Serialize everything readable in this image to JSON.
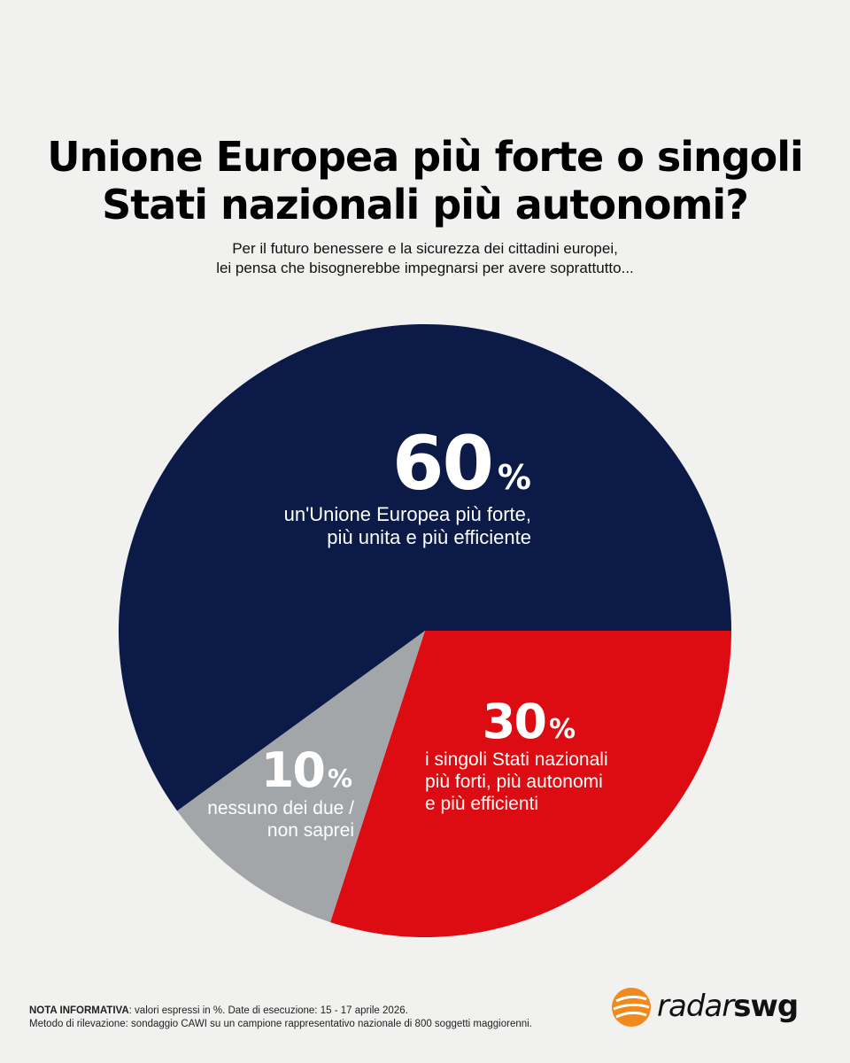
{
  "header": {
    "title_line1": "Unione Europea più forte o singoli",
    "title_line2": "Stati nazionali più autonomi?",
    "subtitle_line1": "Per il futuro benessere e la sicurezza dei cittadini europei,",
    "subtitle_line2": "lei pensa che bisognerebbe impegnarsi per avere soprattutto..."
  },
  "chart_data": {
    "type": "pie",
    "slices": [
      {
        "value": 60,
        "value_label": "60",
        "label_line1": "un'Unione Europea più forte,",
        "label_line2": "più unita e più efficiente",
        "label_line3": "",
        "color": "#0b1a47"
      },
      {
        "value": 30,
        "value_label": "30",
        "label_line1": "i singoli Stati nazionali",
        "label_line2": "più forti, più autonomi",
        "label_line3": "e più efficienti",
        "color": "#dd0c12"
      },
      {
        "value": 10,
        "value_label": "10",
        "label_line1": "nessuno dei due /",
        "label_line2": "non saprei",
        "label_line3": "",
        "color": "#a3a6a9"
      }
    ],
    "percent_symbol": "%"
  },
  "footer": {
    "note_bold": "NOTA INFORMATIVA",
    "note_line1": ": valori espressi in %. Date di esecuzione: 15 - 17 aprile 2026.",
    "note_line2": "Metodo di rilevazione: sondaggio CAWI su un campione rappresentativo nazionale di 800 soggetti maggiorenni.",
    "logo_radar": "radar",
    "logo_swg": "swg",
    "logo_color": "#f08a1c"
  }
}
